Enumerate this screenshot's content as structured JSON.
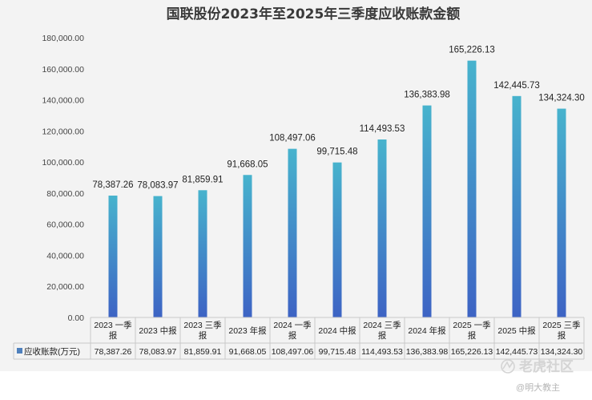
{
  "chart_data": {
    "type": "bar",
    "title": "国联股份2023年至2025年三季度应收账款金额",
    "categories": [
      [
        "2023 一季",
        "报"
      ],
      [
        "2023 中报"
      ],
      [
        "2023 三季",
        "报"
      ],
      [
        "2023 年报"
      ],
      [
        "2024 一季",
        "报"
      ],
      [
        "2024 中报"
      ],
      [
        "2024 三季",
        "报"
      ],
      [
        "2024 年报"
      ],
      [
        "2025 一季",
        "报"
      ],
      [
        "2025 中报"
      ],
      [
        "2025 三季",
        "报"
      ]
    ],
    "series": [
      {
        "name": "应收账款(万元)",
        "values": [
          78387.26,
          78083.97,
          81859.91,
          91668.05,
          108497.06,
          99715.48,
          114493.53,
          136383.98,
          165226.13,
          142445.73,
          134324.3
        ],
        "labels": [
          "78,387.26",
          "78,083.97",
          "81,859.91",
          "91,668.05",
          "108,497.06",
          "99,715.48",
          "114,493.53",
          "136,383.98",
          "165,226.13",
          "142,445.73",
          "134,324.30"
        ]
      }
    ],
    "yticks": [
      0,
      20000,
      40000,
      60000,
      80000,
      100000,
      120000,
      140000,
      160000,
      180000
    ],
    "ytick_labels": [
      "0.00",
      "20,000.00",
      "40,000.00",
      "60,000.00",
      "80,000.00",
      "100,000.00",
      "120,000.00",
      "140,000.00",
      "160,000.00",
      "180,000.00"
    ],
    "ylim": [
      0,
      180000
    ],
    "data_table": true,
    "colors": {
      "bar_top": "#47b3cd",
      "bar_bottom": "#3d63c4",
      "legend": "#4f81bd"
    }
  },
  "watermark": {
    "brand": "老虎社区",
    "user": "@明大教主"
  }
}
